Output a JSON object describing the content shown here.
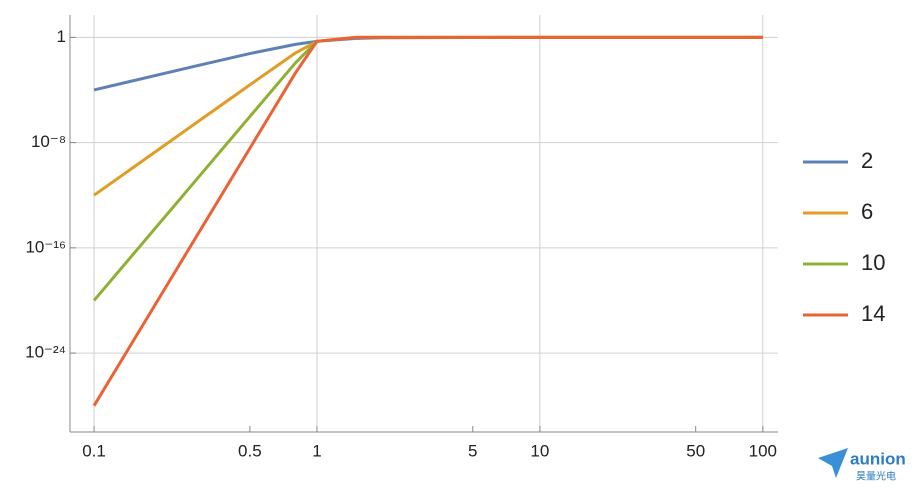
{
  "chart_data": {
    "type": "line",
    "log_x": true,
    "log_y": true,
    "grid": true,
    "legend": "right",
    "x": [
      0.1,
      0.3,
      0.5,
      0.8,
      1,
      1.5,
      2,
      10,
      100
    ],
    "series": [
      {
        "name": "2",
        "color": "#5e81b5",
        "values": [
          0.0001,
          0.00803,
          0.0588,
          0.291,
          0.5,
          0.835,
          0.941,
          0.9999,
          1
        ]
      },
      {
        "name": "6",
        "color": "#e19c24",
        "values": [
          1e-12,
          5.31e-07,
          0.000244,
          0.0643,
          0.5,
          0.992,
          1,
          1,
          1
        ]
      },
      {
        "name": "10",
        "color": "#8fb032",
        "values": [
          1e-20,
          3.49e-11,
          9.54e-07,
          0.0114,
          0.5,
          0.9997,
          1,
          1,
          1
        ]
      },
      {
        "name": "14",
        "color": "#eb6235",
        "values": [
          1e-28,
          2.29e-15,
          3.73e-09,
          0.00193,
          0.5,
          1,
          1,
          1,
          1
        ]
      }
    ],
    "xlim": [
      0.078,
      117
    ],
    "xticks": [
      0.1,
      0.5,
      1,
      5,
      10,
      50,
      100
    ],
    "xgrid": [
      0.1,
      1,
      10,
      100
    ],
    "ylim": [
      1e-30,
      50
    ],
    "yticks": [
      1,
      {
        "value": 1e-08,
        "label": "10⁻⁸"
      },
      {
        "value": 1e-16,
        "label": "10⁻¹⁶"
      },
      {
        "value": 1e-24,
        "label": "10⁻²⁴"
      }
    ],
    "watermark": {
      "brand": "aunion",
      "sub": "昊量光电"
    }
  }
}
